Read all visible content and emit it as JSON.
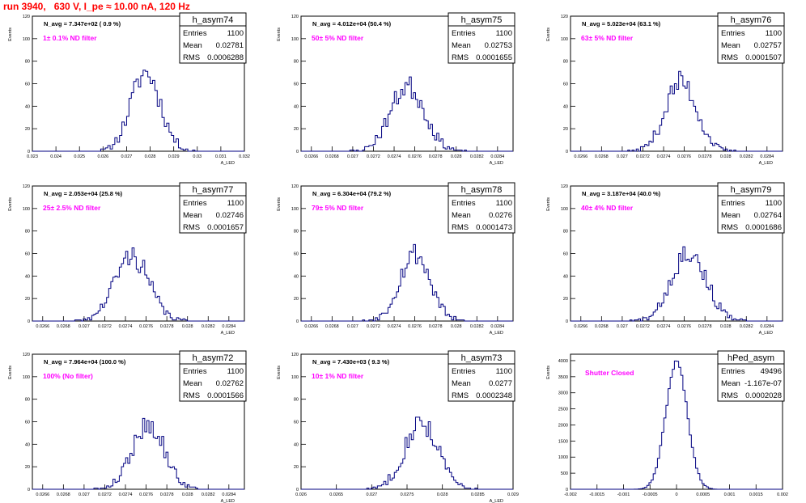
{
  "page": {
    "title": "run 3940,   630 V, I_pe ≈ 10.00 nA, 120 Hz"
  },
  "style": {
    "hist_color": "#000080",
    "label_color": "#ff00ff",
    "title_color": "#ff0000",
    "frame_color": "#000000"
  },
  "chart_data": [
    {
      "type": "histogram",
      "name": "h_asym74",
      "stats": {
        "entries_label": "Entries",
        "entries": "1100",
        "mean_label": "Mean",
        "mean": "0.02781",
        "rms_label": "RMS",
        "rms": "0.0006288"
      },
      "navg": "N_avg = 7.347e+02 ( 0.9 %)",
      "filter": "1± 0.1% ND filter",
      "xlabel": "A_LED",
      "ylabel": "Events",
      "xlim": [
        0.023,
        0.032
      ],
      "ylim": [
        0,
        120
      ],
      "xticks": [
        "0.023",
        "0.024",
        "0.025",
        "0.026",
        "0.027",
        "0.028",
        "0.029",
        "0.03",
        "0.031",
        "0.032"
      ],
      "yticks": [
        "0",
        "20",
        "40",
        "60",
        "80",
        "100",
        "120"
      ],
      "mu": 0.02781,
      "sigma": 0.00063,
      "peak": 70,
      "bins": 90,
      "seed": 11
    },
    {
      "type": "histogram",
      "name": "h_asym75",
      "stats": {
        "entries_label": "Entries",
        "entries": "1100",
        "mean_label": "Mean",
        "mean": "0.02753",
        "rms_label": "RMS",
        "rms": "0.0001655"
      },
      "navg": "N_avg = 4.012e+04 (50.4 %)",
      "filter": "50± 5% ND filter",
      "xlabel": "A_LED",
      "ylabel": "Events",
      "xlim": [
        0.0265,
        0.02855
      ],
      "ylim": [
        0,
        120
      ],
      "xticks": [
        "0.0266",
        "0.0268",
        "0.027",
        "0.0272",
        "0.0274",
        "0.0276",
        "0.0278",
        "0.028",
        "0.0282",
        "0.0284"
      ],
      "yticks": [
        "0",
        "20",
        "40",
        "60",
        "80",
        "100",
        "120"
      ],
      "mu": 0.02753,
      "sigma": 0.000165,
      "peak": 58,
      "bins": 100,
      "seed": 23
    },
    {
      "type": "histogram",
      "name": "h_asym76",
      "stats": {
        "entries_label": "Entries",
        "entries": "1100",
        "mean_label": "Mean",
        "mean": "0.02757",
        "rms_label": "RMS",
        "rms": "0.0001507"
      },
      "navg": "N_avg = 5.023e+04 (63.1 %)",
      "filter": "63± 5% ND filter",
      "xlabel": "A_LED",
      "ylabel": "Events",
      "xlim": [
        0.0265,
        0.02855
      ],
      "ylim": [
        0,
        120
      ],
      "xticks": [
        "0.0266",
        "0.0268",
        "0.027",
        "0.0272",
        "0.0274",
        "0.0276",
        "0.0278",
        "0.028",
        "0.0282",
        "0.0284"
      ],
      "yticks": [
        "0",
        "20",
        "40",
        "60",
        "80",
        "100",
        "120"
      ],
      "mu": 0.02757,
      "sigma": 0.00015,
      "peak": 62,
      "bins": 100,
      "seed": 37
    },
    {
      "type": "histogram",
      "name": "h_asym77",
      "stats": {
        "entries_label": "Entries",
        "entries": "1100",
        "mean_label": "Mean",
        "mean": "0.02746",
        "rms_label": "RMS",
        "rms": "0.0001657"
      },
      "navg": "N_avg = 2.053e+04 (25.8 %)",
      "filter": "25± 2.5% ND filter",
      "xlabel": "A_LED",
      "ylabel": "Events",
      "xlim": [
        0.0265,
        0.02855
      ],
      "ylim": [
        0,
        120
      ],
      "xticks": [
        "0.0266",
        "0.0268",
        "0.027",
        "0.0272",
        "0.0274",
        "0.0276",
        "0.0278",
        "0.028",
        "0.0282",
        "0.0284"
      ],
      "yticks": [
        "0",
        "20",
        "40",
        "60",
        "80",
        "100",
        "120"
      ],
      "mu": 0.02746,
      "sigma": 0.000166,
      "peak": 58,
      "bins": 100,
      "seed": 41
    },
    {
      "type": "histogram",
      "name": "h_asym78",
      "stats": {
        "entries_label": "Entries",
        "entries": "1100",
        "mean_label": "Mean",
        "mean": "0.0276",
        "rms_label": "RMS",
        "rms": "0.0001473"
      },
      "navg": "N_avg = 6.304e+04 (79.2 %)",
      "filter": "79± 5% ND filter",
      "xlabel": "A_LED",
      "ylabel": "Events",
      "xlim": [
        0.0265,
        0.02855
      ],
      "ylim": [
        0,
        120
      ],
      "xticks": [
        "0.0266",
        "0.0268",
        "0.027",
        "0.0272",
        "0.0274",
        "0.0276",
        "0.0278",
        "0.028",
        "0.0282",
        "0.0284"
      ],
      "yticks": [
        "0",
        "20",
        "40",
        "60",
        "80",
        "100",
        "120"
      ],
      "mu": 0.0276,
      "sigma": 0.000147,
      "peak": 60,
      "bins": 100,
      "seed": 53
    },
    {
      "type": "histogram",
      "name": "h_asym79",
      "stats": {
        "entries_label": "Entries",
        "entries": "1100",
        "mean_label": "Mean",
        "mean": "0.02764",
        "rms_label": "RMS",
        "rms": "0.0001686"
      },
      "navg": "N_avg = 3.187e+04 (40.0 %)",
      "filter": "40± 4% ND filter",
      "xlabel": "A_LED",
      "ylabel": "Events",
      "xlim": [
        0.0265,
        0.02855
      ],
      "ylim": [
        0,
        120
      ],
      "xticks": [
        "0.0266",
        "0.0268",
        "0.027",
        "0.0272",
        "0.0274",
        "0.0276",
        "0.0278",
        "0.028",
        "0.0282",
        "0.0284"
      ],
      "yticks": [
        "0",
        "20",
        "40",
        "60",
        "80",
        "100",
        "120"
      ],
      "mu": 0.02764,
      "sigma": 0.000168,
      "peak": 62,
      "bins": 100,
      "seed": 67
    },
    {
      "type": "histogram",
      "name": "h_asym72",
      "stats": {
        "entries_label": "Entries",
        "entries": "1100",
        "mean_label": "Mean",
        "mean": "0.02762",
        "rms_label": "RMS",
        "rms": "0.0001566"
      },
      "navg": "N_avg = 7.964e+04 (100.0 %)",
      "filter": "100% (No filter)",
      "xlabel": "A_LED",
      "ylabel": "Events",
      "xlim": [
        0.0265,
        0.02855
      ],
      "ylim": [
        0,
        120
      ],
      "xticks": [
        "0.0266",
        "0.0268",
        "0.027",
        "0.0272",
        "0.0274",
        "0.0276",
        "0.0278",
        "0.028",
        "0.0282",
        "0.0284"
      ],
      "yticks": [
        "0",
        "20",
        "40",
        "60",
        "80",
        "100",
        "120"
      ],
      "mu": 0.02762,
      "sigma": 0.000157,
      "peak": 58,
      "bins": 100,
      "seed": 79
    },
    {
      "type": "histogram",
      "name": "h_asym73",
      "stats": {
        "entries_label": "Entries",
        "entries": "1100",
        "mean_label": "Mean",
        "mean": "0.0277",
        "rms_label": "RMS",
        "rms": "0.0002348"
      },
      "navg": "N_avg = 7.430e+03 ( 9.3 %)",
      "filter": "10± 1% ND filter",
      "xlabel": "A_LED",
      "ylabel": "Events",
      "xlim": [
        0.026,
        0.029
      ],
      "ylim": [
        0,
        120
      ],
      "xticks": [
        "0.026",
        "0.0265",
        "0.027",
        "0.0275",
        "0.028",
        "0.0285",
        "0.029"
      ],
      "yticks": [
        "0",
        "20",
        "40",
        "60",
        "80",
        "100",
        "120"
      ],
      "mu": 0.0277,
      "sigma": 0.000235,
      "peak": 60,
      "bins": 100,
      "seed": 83
    },
    {
      "type": "histogram",
      "name": "hPed_asym",
      "stats": {
        "entries_label": "Entries",
        "entries": "49496",
        "mean_label": "Mean",
        "mean": "-1.167e-07",
        "rms_label": "RMS",
        "rms": "0.0002028"
      },
      "navg": "",
      "filter": "Shutter Closed",
      "xlabel": "",
      "ylabel": "Events",
      "xlim": [
        -0.002,
        0.002
      ],
      "ylim": [
        0,
        4200
      ],
      "xticks": [
        "-0.002",
        "-0.0015",
        "-0.001",
        "-0.0005",
        "0",
        "0.0005",
        "0.001",
        "0.0015",
        "0.002"
      ],
      "yticks": [
        "0",
        "500",
        "1000",
        "1500",
        "2000",
        "2500",
        "3000",
        "3500",
        "4000"
      ],
      "mu": 0.0,
      "sigma": 0.000203,
      "peak": 3950,
      "bins": 100,
      "seed": 97
    }
  ]
}
